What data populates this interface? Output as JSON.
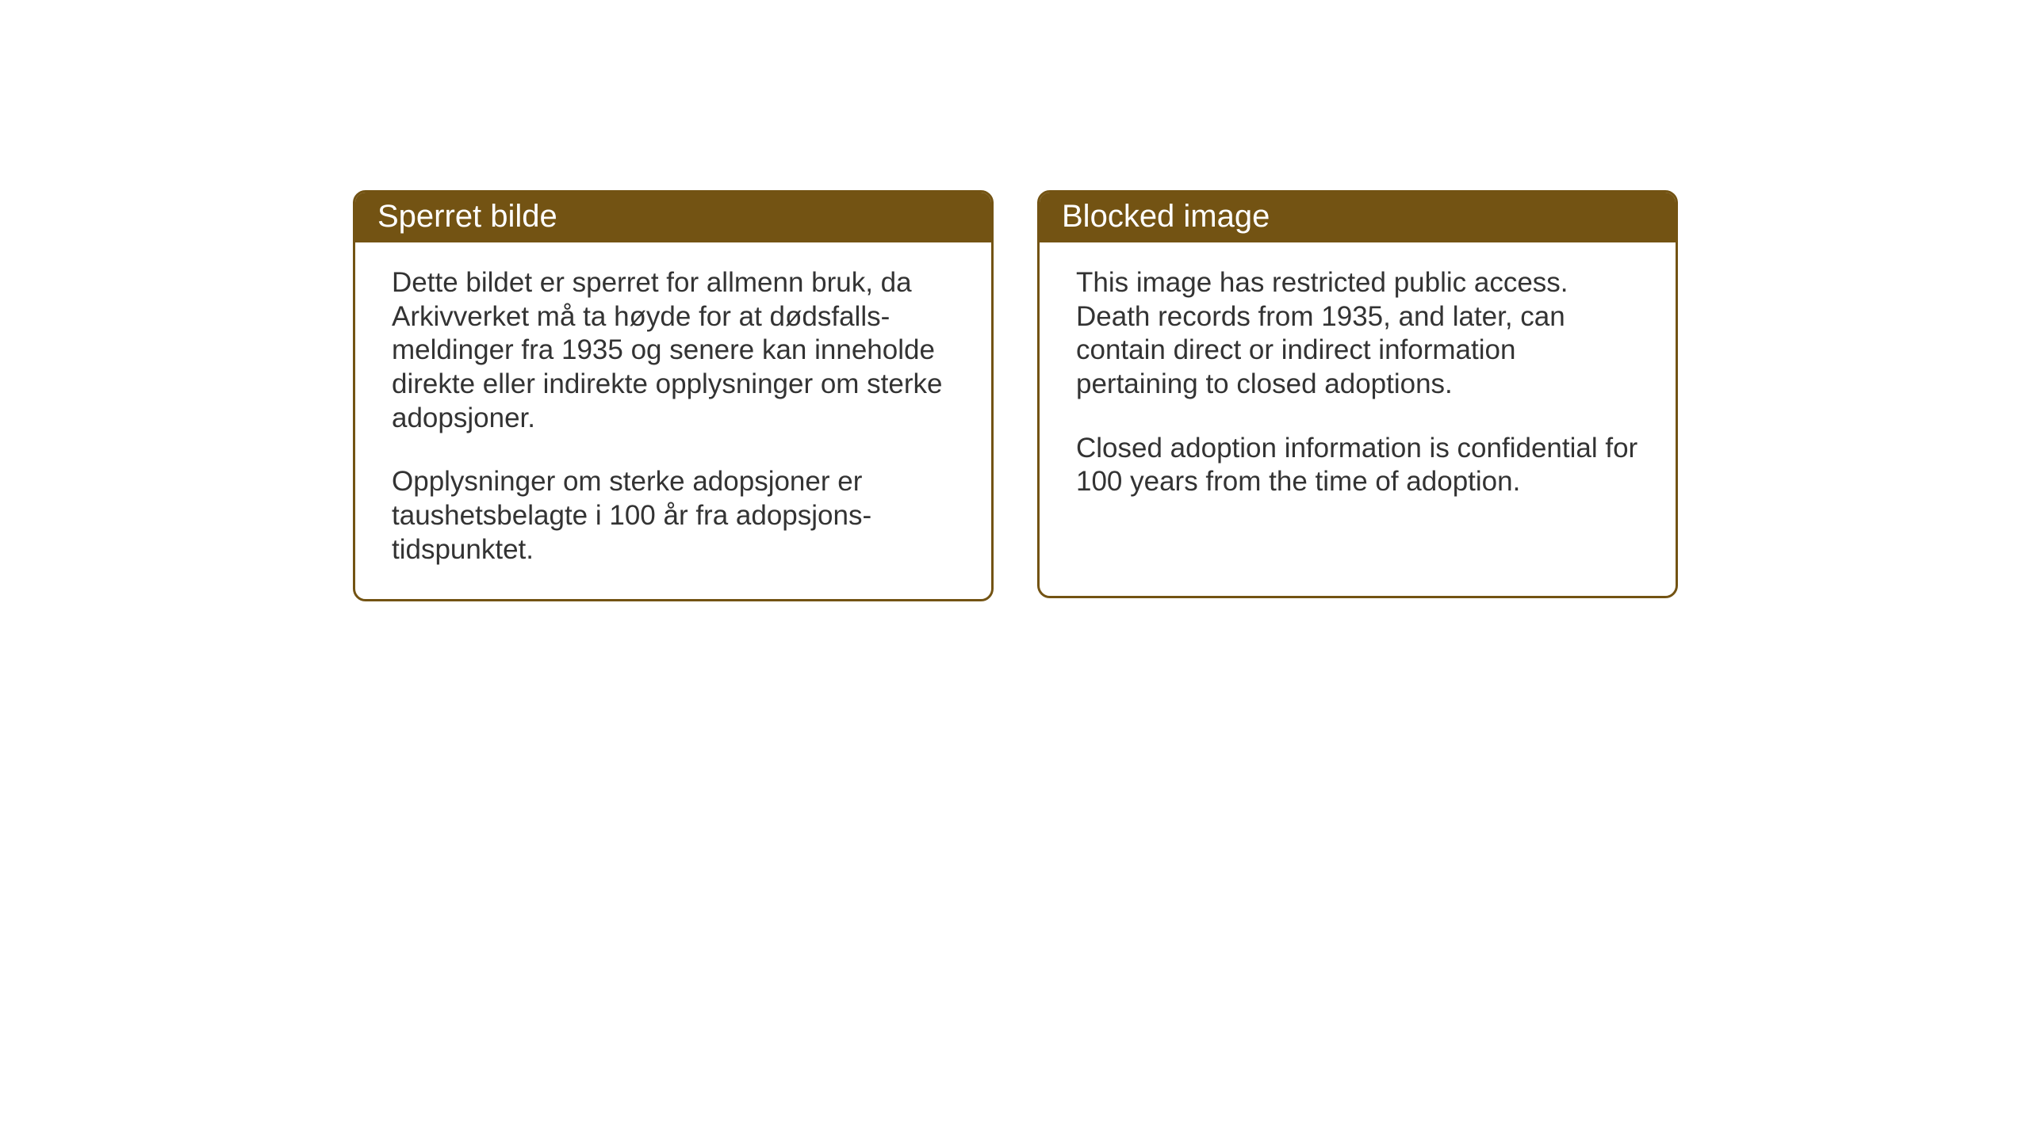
{
  "layout": {
    "background_color": "#ffffff",
    "card_border_color": "#735313",
    "card_header_bg": "#735313",
    "card_header_text_color": "#ffffff",
    "body_text_color": "#333333",
    "header_fontsize": 40,
    "body_fontsize": 35,
    "border_radius": 16,
    "border_width": 3
  },
  "cards": {
    "norwegian": {
      "title": "Sperret bilde",
      "paragraph1": "Dette bildet er sperret for allmenn bruk, da Arkivverket må ta høyde for at dødsfalls- meldinger fra 1935 og senere kan inneholde direkte eller indirekte opplysninger om sterke adopsjoner.",
      "paragraph2": "Opplysninger om sterke adopsjoner er taushetsbelagte i 100 år fra adopsjons- tidspunktet."
    },
    "english": {
      "title": "Blocked image",
      "paragraph1": "This image has restricted public access. Death records from 1935, and later, can contain direct or indirect information pertaining to closed adoptions.",
      "paragraph2": "Closed adoption information is confidential for 100 years from the time of adoption."
    }
  }
}
